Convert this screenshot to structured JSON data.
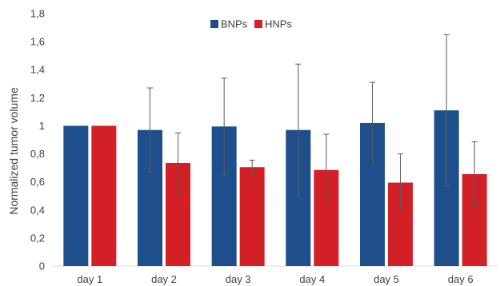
{
  "chart_data": {
    "type": "bar",
    "categories": [
      "day 1",
      "day 2",
      "day 3",
      "day 4",
      "day 5",
      "day 6"
    ],
    "series": [
      {
        "name": "BNPs",
        "color": "#1f4e8c",
        "values": [
          1.0,
          0.97,
          0.995,
          0.97,
          1.02,
          1.11
        ],
        "errors": [
          0,
          0.3,
          0.345,
          0.47,
          0.29,
          0.54
        ]
      },
      {
        "name": "HNPs",
        "color": "#d32027",
        "values": [
          1.0,
          0.735,
          0.705,
          0.685,
          0.595,
          0.655
        ],
        "errors": [
          0,
          0.215,
          0.05,
          0.255,
          0.205,
          0.23
        ]
      }
    ],
    "ylabel": "Normalized tumor volume",
    "xlabel": "",
    "ylim": [
      0,
      1.8
    ],
    "yticks": [
      "0",
      "0,2",
      "0,4",
      "0,6",
      "0,8",
      "1",
      "1,2",
      "1,4",
      "1,6",
      "1,8"
    ],
    "grid": false,
    "legend_position": "top-center"
  }
}
